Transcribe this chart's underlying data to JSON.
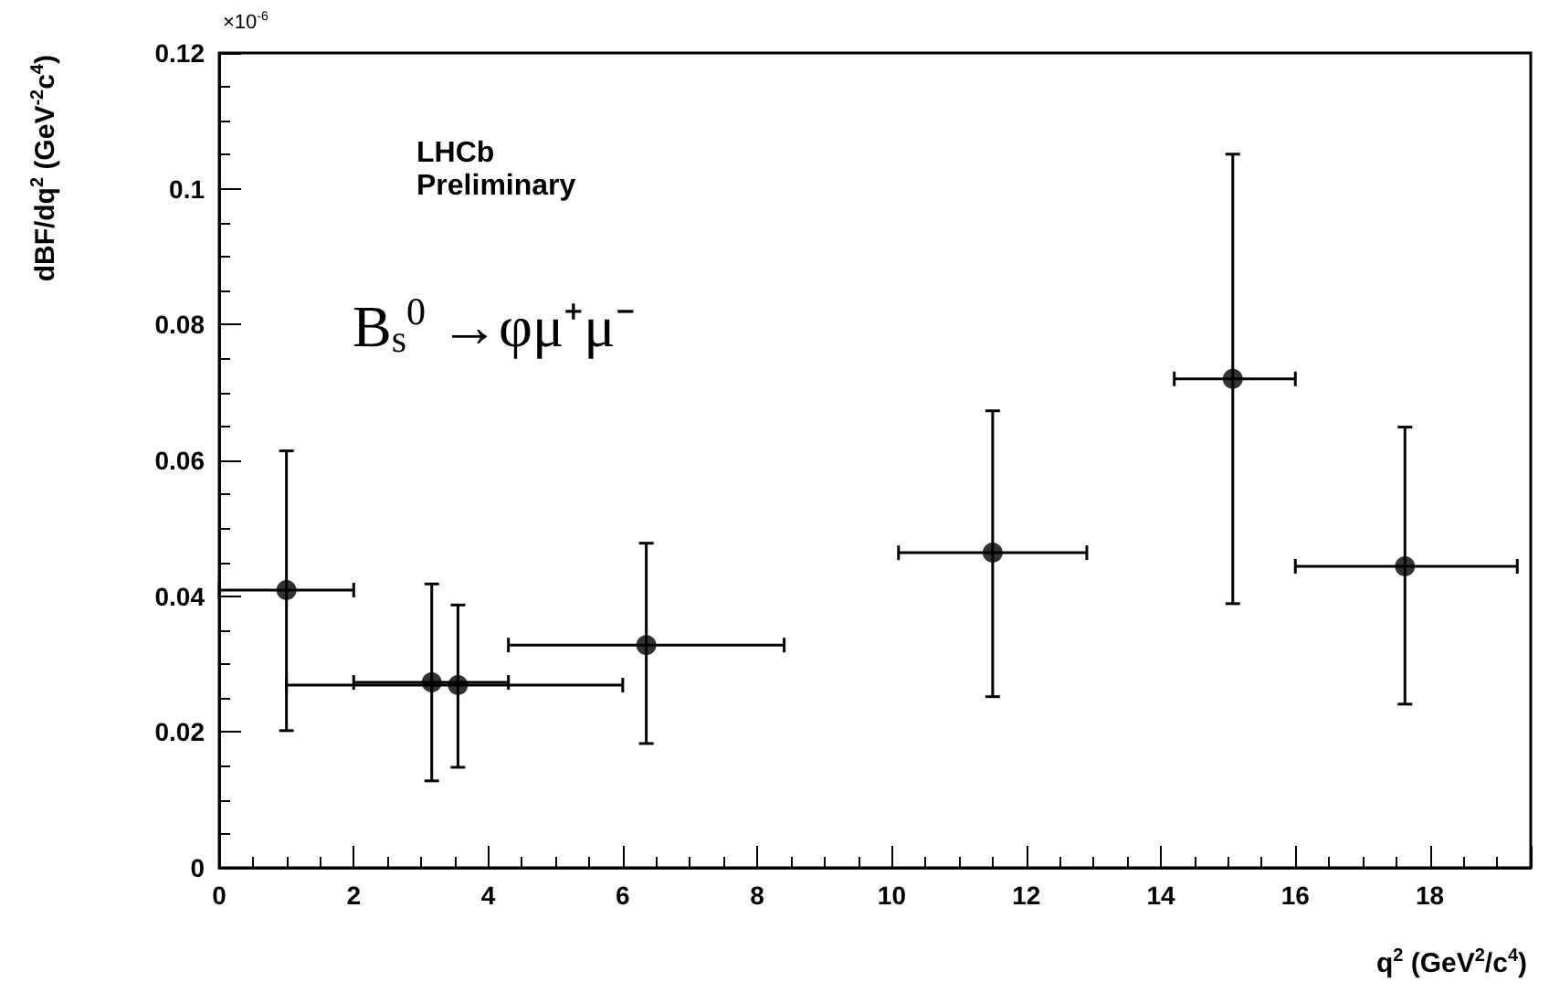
{
  "chart_data": {
    "type": "scatter",
    "xlabel": "q$^{2}$ (GeV$^{2}$/c$^{4}$)",
    "ylabel": "dBF/dq$^{2}$ (GeV$^{-2}$c$^{4}$)",
    "annotations": [
      "×10$^{-6}$",
      "LHCb",
      "Preliminary",
      "B$_{s}$$^{0}$ →φμ⁺μ⁻"
    ],
    "x": [
      1.0,
      3.16,
      3.55,
      6.35,
      11.5,
      15.07,
      17.63
    ],
    "values": [
      0.0409,
      0.0273,
      0.0269,
      0.0328,
      0.0464,
      0.072,
      0.0444
    ],
    "errors": [
      [
        0.0202,
        0.0614
      ],
      [
        0.0128,
        0.0418
      ],
      [
        0.0148,
        0.0387
      ],
      [
        0.0183,
        0.0478
      ],
      [
        0.0252,
        0.0673
      ],
      [
        0.0389,
        0.1051
      ],
      [
        0.0241,
        0.0649
      ]
    ],
    "xerrors": [
      [
        0,
        2
      ],
      [
        2,
        4.3
      ],
      [
        1,
        6
      ],
      [
        4.3,
        8.4
      ],
      [
        10.1,
        12.9
      ],
      [
        14.2,
        16
      ],
      [
        16,
        19.3
      ]
    ],
    "color": "#000000",
    "marker": "circle",
    "grid": false,
    "xlim": [
      0,
      19.5
    ],
    "xticks": [
      0,
      2,
      4,
      6,
      8,
      10,
      12,
      14,
      16,
      18
    ],
    "ylim": [
      0,
      0.12
    ],
    "yticks": [
      0,
      0.02,
      0.04,
      0.06,
      0.08,
      0.1,
      0.12
    ]
  }
}
